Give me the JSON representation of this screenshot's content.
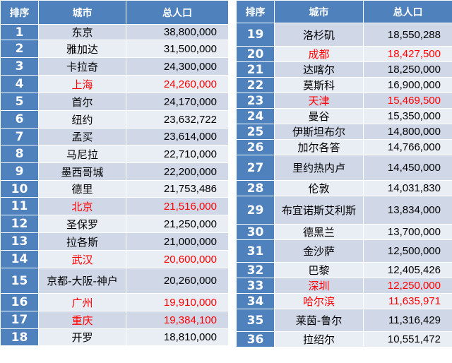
{
  "headers": {
    "rank": "排序",
    "city": "城市",
    "population": "总人口"
  },
  "colors": {
    "header_bg": "#4f81bd",
    "row_odd": "#d0d8e8",
    "row_even": "#e9edf4",
    "highlight_text": "#ff0000"
  },
  "left_rows": [
    {
      "rank": "1",
      "city": "东京",
      "population": "38,800,000",
      "highlight": false
    },
    {
      "rank": "2",
      "city": "雅加达",
      "population": "31,500,000",
      "highlight": false
    },
    {
      "rank": "3",
      "city": "卡拉奇",
      "population": "24,300,000",
      "highlight": false
    },
    {
      "rank": "4",
      "city": "上海",
      "population": "24,260,000",
      "highlight": true
    },
    {
      "rank": "5",
      "city": "首尔",
      "population": "24,170,000",
      "highlight": false
    },
    {
      "rank": "6",
      "city": "纽约",
      "population": "23,632,722",
      "highlight": false
    },
    {
      "rank": "7",
      "city": "孟买",
      "population": "23,614,000",
      "highlight": false
    },
    {
      "rank": "8",
      "city": "马尼拉",
      "population": "22,710,000",
      "highlight": false
    },
    {
      "rank": "9",
      "city": "墨西哥城",
      "population": "22,200,000",
      "highlight": false
    },
    {
      "rank": "10",
      "city": "德里",
      "population": "21,753,486",
      "highlight": false
    },
    {
      "rank": "11",
      "city": "北京",
      "population": "21,516,000",
      "highlight": true
    },
    {
      "rank": "12",
      "city": "圣保罗",
      "population": "21,250,000",
      "highlight": false
    },
    {
      "rank": "13",
      "city": "拉各斯",
      "population": "21,000,000",
      "highlight": false
    },
    {
      "rank": "14",
      "city": "武汉",
      "population": "20,600,000",
      "highlight": true
    },
    {
      "rank": "15",
      "city": "京都-大阪-神户",
      "population": "20,260,000",
      "highlight": false
    },
    {
      "rank": "16",
      "city": "广州",
      "population": "19,910,000",
      "highlight": true
    },
    {
      "rank": "17",
      "city": "重庆",
      "population": "19,384,100",
      "highlight": true
    },
    {
      "rank": "18",
      "city": "开罗",
      "population": "18,810,000",
      "highlight": false
    }
  ],
  "right_rows": [
    {
      "rank": "19",
      "city": "洛杉矶",
      "population": "18,550,288",
      "highlight": false
    },
    {
      "rank": "20",
      "city": "成都",
      "population": "18,427,500",
      "highlight": true
    },
    {
      "rank": "21",
      "city": "达喀尔",
      "population": "18,250,000",
      "highlight": false
    },
    {
      "rank": "22",
      "city": "莫斯科",
      "population": "16,900,000",
      "highlight": false
    },
    {
      "rank": "23",
      "city": "天津",
      "population": "15,469,500",
      "highlight": true
    },
    {
      "rank": "24",
      "city": "曼谷",
      "population": "15,350,000",
      "highlight": false
    },
    {
      "rank": "25",
      "city": "伊斯坦布尔",
      "population": "14,800,000",
      "highlight": false
    },
    {
      "rank": "26",
      "city": "加尔各答",
      "population": "14,766,000",
      "highlight": false
    },
    {
      "rank": "27",
      "city": "里约热内卢",
      "population": "14,450,000",
      "highlight": false
    },
    {
      "rank": "28",
      "city": "伦敦",
      "population": "14,031,830",
      "highlight": false
    },
    {
      "rank": "29",
      "city": "布宜诺斯艾利斯",
      "population": "13,834,000",
      "highlight": false
    },
    {
      "rank": "30",
      "city": "德黑兰",
      "population": "13,700,000",
      "highlight": false
    },
    {
      "rank": "31",
      "city": "金沙萨",
      "population": "12,500,000",
      "highlight": false
    },
    {
      "rank": "32",
      "city": "巴黎",
      "population": "12,405,426",
      "highlight": false
    },
    {
      "rank": "33",
      "city": "深圳",
      "population": "12,250,000",
      "highlight": true
    },
    {
      "rank": "34",
      "city": "哈尔滨",
      "population": "11,635,971",
      "highlight": true
    },
    {
      "rank": "35",
      "city": "莱茵-鲁尔",
      "population": "11,316,429",
      "highlight": false
    },
    {
      "rank": "36",
      "city": "拉绍尔",
      "population": "10,551,472",
      "highlight": false
    }
  ]
}
